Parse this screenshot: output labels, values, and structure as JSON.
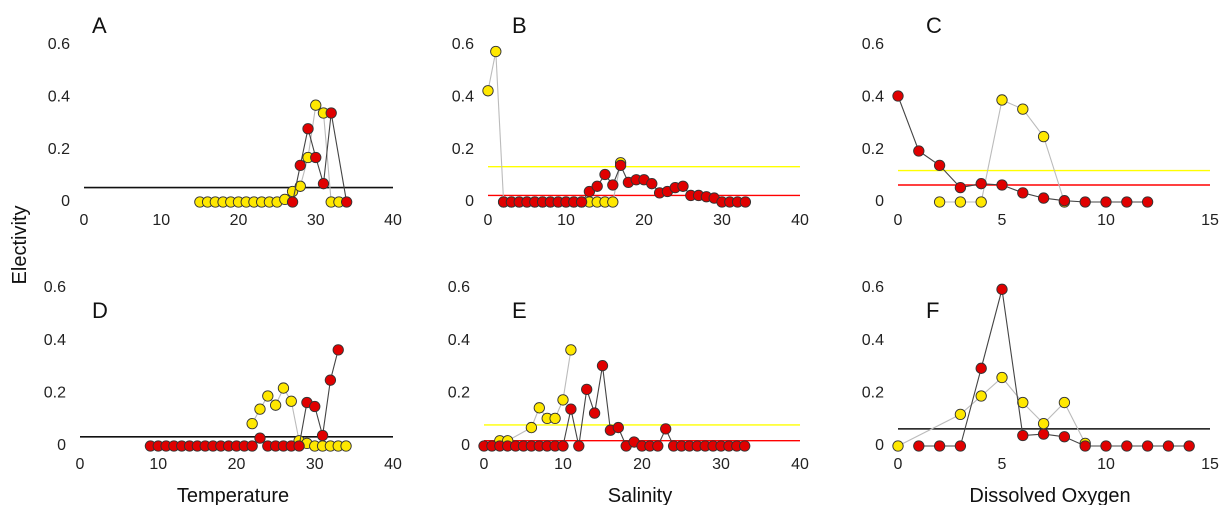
{
  "figure": {
    "y_axis_title": "Electivity",
    "x_axis_titles": [
      "Temperature",
      "Salinity",
      "Dissolved Oxygen"
    ]
  },
  "colors": {
    "yellow_fill": "#FFE800",
    "red_fill": "#E00000",
    "yellow_line": "#BBBBBB",
    "red_line": "#444444",
    "marker_stroke": "#333333",
    "ref_black": "#111111",
    "ref_yellow": "#FFFF00",
    "ref_red": "#FF0000"
  },
  "chart_data": [
    {
      "panel": "A",
      "type": "line",
      "xlim": [
        0,
        40
      ],
      "ylim": [
        0,
        0.6
      ],
      "xticks": [
        "0",
        "10",
        "20",
        "30",
        "40"
      ],
      "yticks": [
        "0",
        "0.2",
        "0.4",
        "0.6"
      ],
      "series": [
        {
          "color": "yellow",
          "x": [
            15,
            16,
            17,
            18,
            19,
            20,
            21,
            22,
            23,
            24,
            25,
            26,
            27,
            28,
            29,
            30,
            31,
            32,
            33
          ],
          "y": [
            0,
            0,
            0,
            0,
            0,
            0,
            0,
            0,
            0,
            0,
            0,
            0.01,
            0.04,
            0.06,
            0.17,
            0.37,
            0.34,
            0,
            0
          ]
        },
        {
          "color": "red",
          "x": [
            27,
            28,
            29,
            30,
            31,
            32,
            34
          ],
          "y": [
            0,
            0.14,
            0.28,
            0.17,
            0.07,
            0.34,
            0
          ]
        }
      ],
      "reference_lines": [
        {
          "color": "black",
          "y": 0.055
        }
      ]
    },
    {
      "panel": "B",
      "type": "line",
      "xlim": [
        0,
        40
      ],
      "ylim": [
        0,
        0.6
      ],
      "xticks": [
        "0",
        "10",
        "20",
        "30",
        "40"
      ],
      "yticks": [
        "0",
        "0.2",
        "0.4",
        "0.6"
      ],
      "series": [
        {
          "color": "yellow",
          "x": [
            0,
            1,
            2,
            3,
            4,
            5,
            6,
            7,
            8,
            9,
            10,
            11,
            12,
            13,
            14,
            15,
            16,
            17
          ],
          "y": [
            0.425,
            0.575,
            0,
            0,
            0,
            0,
            0,
            0,
            0,
            0,
            0,
            0,
            0,
            0,
            0,
            0,
            0,
            0.15
          ]
        },
        {
          "color": "red",
          "x": [
            2,
            3,
            4,
            5,
            6,
            7,
            8,
            9,
            10,
            11,
            12,
            13,
            14,
            15,
            16,
            17,
            18,
            19,
            20,
            21,
            22,
            23,
            24,
            25,
            26,
            27,
            28,
            29,
            30,
            31,
            32,
            33
          ],
          "y": [
            0,
            0,
            0,
            0,
            0,
            0,
            0,
            0,
            0,
            0,
            0,
            0.04,
            0.06,
            0.105,
            0.065,
            0.14,
            0.075,
            0.085,
            0.085,
            0.07,
            0.035,
            0.04,
            0.055,
            0.06,
            0.025,
            0.025,
            0.02,
            0.015,
            0,
            0,
            0,
            0
          ]
        }
      ],
      "reference_lines": [
        {
          "color": "yellow",
          "y": 0.135
        },
        {
          "color": "red",
          "y": 0.025
        }
      ]
    },
    {
      "panel": "C",
      "type": "line",
      "xlim": [
        0,
        15
      ],
      "ylim": [
        0,
        0.6
      ],
      "xticks": [
        "0",
        "5",
        "10",
        "15"
      ],
      "yticks": [
        "0",
        "0.2",
        "0.4",
        "0.6"
      ],
      "series": [
        {
          "color": "yellow",
          "x": [
            2,
            3,
            4,
            5,
            6,
            7,
            8
          ],
          "y": [
            0,
            0,
            0,
            0.39,
            0.355,
            0.25,
            0
          ]
        },
        {
          "color": "red",
          "x": [
            0,
            1,
            2,
            3,
            4,
            5,
            6,
            7,
            8,
            9,
            10,
            11,
            12
          ],
          "y": [
            0.405,
            0.195,
            0.14,
            0.055,
            0.07,
            0.065,
            0.035,
            0.015,
            0.005,
            0,
            0,
            0,
            0
          ]
        }
      ],
      "reference_lines": [
        {
          "color": "yellow",
          "y": 0.12
        },
        {
          "color": "red",
          "y": 0.065
        }
      ]
    },
    {
      "panel": "D",
      "type": "line",
      "xlim": [
        0,
        40
      ],
      "ylim": [
        0,
        0.6
      ],
      "xticks": [
        "0",
        "10",
        "20",
        "30",
        "40"
      ],
      "yticks": [
        "0",
        "0.2",
        "0.4",
        "0.6"
      ],
      "series": [
        {
          "color": "yellow",
          "x": [
            22,
            23,
            24,
            25,
            26,
            27,
            28,
            29,
            30,
            31,
            32,
            33,
            34
          ],
          "y": [
            0.085,
            0.14,
            0.19,
            0.155,
            0.22,
            0.17,
            0.02,
            0.01,
            0,
            0,
            0,
            0,
            0
          ]
        },
        {
          "color": "red",
          "x": [
            9,
            10,
            11,
            12,
            13,
            14,
            15,
            16,
            17,
            18,
            19,
            20,
            21,
            22,
            23,
            24,
            25,
            26,
            27,
            28,
            29,
            30,
            31,
            32,
            33
          ],
          "y": [
            0,
            0,
            0,
            0,
            0,
            0,
            0,
            0,
            0,
            0,
            0,
            0,
            0,
            0,
            0.03,
            0,
            0,
            0,
            0,
            0,
            0.165,
            0.15,
            0.04,
            0.25,
            0.365
          ]
        }
      ],
      "reference_lines": [
        {
          "color": "black",
          "y": 0.035
        }
      ]
    },
    {
      "panel": "E",
      "type": "line",
      "xlim": [
        0,
        40
      ],
      "ylim": [
        0,
        0.6
      ],
      "xticks": [
        "0",
        "10",
        "20",
        "30",
        "40"
      ],
      "yticks": [
        "0",
        "0.2",
        "0.4",
        "0.6"
      ],
      "series": [
        {
          "color": "yellow",
          "x": [
            2,
            3,
            6,
            7,
            8,
            9,
            10,
            11
          ],
          "y": [
            0.02,
            0.02,
            0.07,
            0.145,
            0.105,
            0.105,
            0.175,
            0.365
          ]
        },
        {
          "color": "red",
          "x": [
            0,
            1,
            2,
            3,
            4,
            5,
            6,
            7,
            8,
            9,
            10,
            11,
            12,
            13,
            14,
            15,
            16,
            17,
            18,
            19,
            20,
            21,
            22,
            23,
            24,
            25,
            26,
            27,
            28,
            29,
            30,
            31,
            32,
            33
          ],
          "y": [
            0,
            0,
            0,
            0,
            0,
            0,
            0,
            0,
            0,
            0,
            0,
            0.14,
            0,
            0.215,
            0.125,
            0.305,
            0.06,
            0.07,
            0,
            0.015,
            0,
            0,
            0,
            0.065,
            0,
            0,
            0,
            0,
            0,
            0,
            0,
            0,
            0,
            0
          ]
        }
      ],
      "reference_lines": [
        {
          "color": "yellow",
          "y": 0.08
        },
        {
          "color": "red",
          "y": 0.02
        }
      ]
    },
    {
      "panel": "F",
      "type": "line",
      "xlim": [
        0,
        15
      ],
      "ylim": [
        0,
        0.6
      ],
      "xticks": [
        "0",
        "5",
        "10",
        "15"
      ],
      "yticks": [
        "0",
        "0.2",
        "0.4",
        "0.6"
      ],
      "series": [
        {
          "color": "yellow",
          "x": [
            0,
            3,
            4,
            5,
            6,
            7,
            8,
            9
          ],
          "y": [
            0,
            0.12,
            0.19,
            0.26,
            0.165,
            0.085,
            0.165,
            0.01
          ]
        },
        {
          "color": "red",
          "x": [
            1,
            2,
            3,
            4,
            5,
            6,
            7,
            8,
            9,
            10,
            11,
            12,
            13,
            14
          ],
          "y": [
            0,
            0,
            0,
            0.295,
            0.595,
            0.04,
            0.045,
            0.035,
            0,
            0,
            0,
            0,
            0,
            0
          ]
        }
      ],
      "reference_lines": [
        {
          "color": "black",
          "y": 0.065
        }
      ]
    }
  ]
}
